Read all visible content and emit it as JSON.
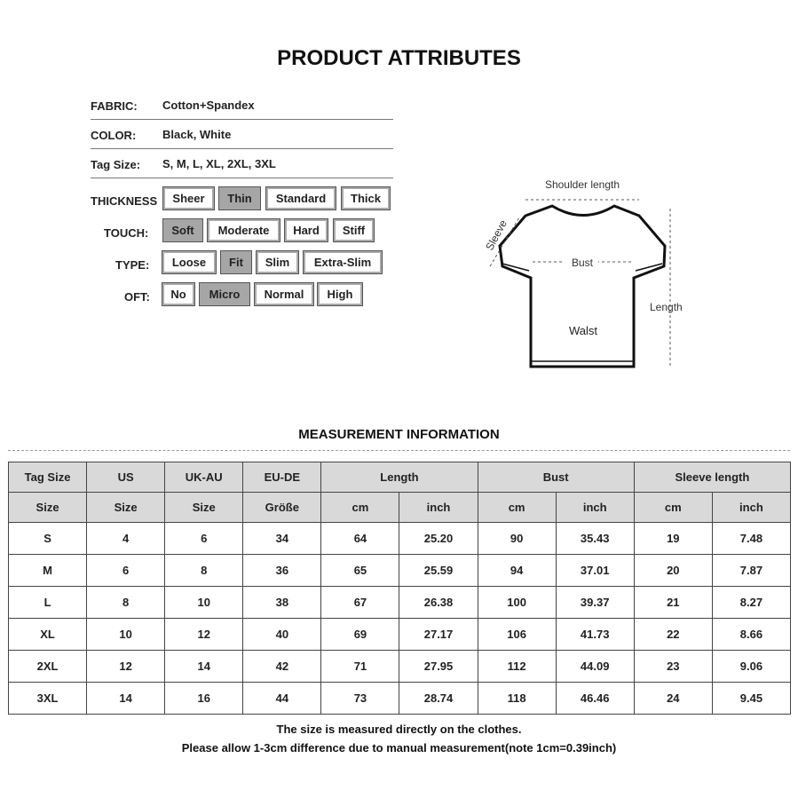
{
  "title": "PRODUCT ATTRIBUTES",
  "attributes": [
    {
      "label": "FABRIC:",
      "value": "Cotton+Spandex"
    },
    {
      "label": "COLOR:",
      "value": "Black,  White"
    },
    {
      "label": "Tag Size:",
      "value": "S,  M,  L,  XL,  2XL,  3XL"
    }
  ],
  "options": [
    {
      "label": "THICKNESS",
      "items": [
        "Sheer",
        "Thin",
        "Standard",
        "Thick"
      ],
      "selected": "Thin"
    },
    {
      "label": "TOUCH:",
      "items": [
        "Soft",
        "Moderate",
        "Hard",
        "Stiff"
      ],
      "selected": "Soft"
    },
    {
      "label": "TYPE:",
      "items": [
        "Loose",
        "Fit",
        "Slim",
        "Extra-Slim"
      ],
      "selected": "Fit"
    },
    {
      "label": "OFT:",
      "items": [
        "No",
        "Micro",
        "Normal",
        "High"
      ],
      "selected": "Micro"
    }
  ],
  "diagram": {
    "shoulder": "Shoulder length",
    "sleeve": "Sleeve",
    "bust": "Bust",
    "waist": "Walst",
    "length": "Length"
  },
  "measurement_title": "MEASUREMENT INFORMATION",
  "table": {
    "header1": [
      "Tag Size",
      "US",
      "UK-AU",
      "EU-DE",
      "Length",
      "Bust",
      "Sleeve length"
    ],
    "header2": [
      "Size",
      "Size",
      "Size",
      "Größe",
      "cm",
      "inch",
      "cm",
      "inch",
      "cm",
      "inch"
    ],
    "rows": [
      [
        "S",
        "4",
        "6",
        "34",
        "64",
        "25.20",
        "90",
        "35.43",
        "19",
        "7.48"
      ],
      [
        "M",
        "6",
        "8",
        "36",
        "65",
        "25.59",
        "94",
        "37.01",
        "20",
        "7.87"
      ],
      [
        "L",
        "8",
        "10",
        "38",
        "67",
        "26.38",
        "100",
        "39.37",
        "21",
        "8.27"
      ],
      [
        "XL",
        "10",
        "12",
        "40",
        "69",
        "27.17",
        "106",
        "41.73",
        "22",
        "8.66"
      ],
      [
        "2XL",
        "12",
        "14",
        "42",
        "71",
        "27.95",
        "112",
        "44.09",
        "23",
        "9.06"
      ],
      [
        "3XL",
        "14",
        "16",
        "44",
        "73",
        "28.74",
        "118",
        "46.46",
        "24",
        "9.45"
      ]
    ]
  },
  "notes": [
    "The size is measured directly on the clothes.",
    "Please allow 1-3cm difference due to manual measurement(note 1cm=0.39inch)"
  ],
  "colors": {
    "selected": "#a6a6a6",
    "header": "#d9d9d9"
  }
}
